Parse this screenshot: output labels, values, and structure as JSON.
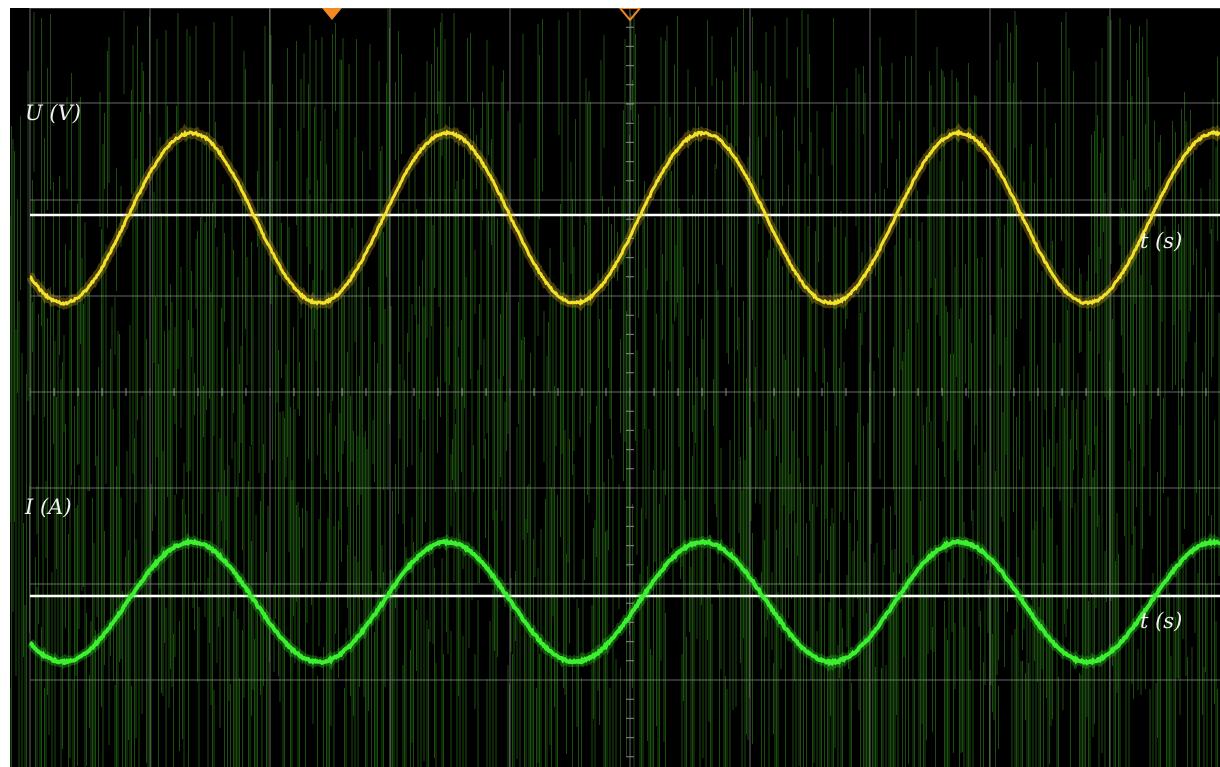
{
  "chart_data": [
    {
      "type": "line",
      "ylabel": "U (V)",
      "xlabel": "t (s)",
      "series": [
        {
          "values_description": "",
          "period_ms": 20,
          "phase_deg": 0,
          "amplitude": 1
        }
      ],
      "color": "#f2e22a",
      "period": 1,
      "amplitude": 1,
      "phase": 0,
      "cycles": 4.65
    },
    {
      "type": "line",
      "ylabel": "I (A)",
      "xlabel": "t (s)",
      "series": [
        {
          "period": 1,
          "phase": 0,
          "amplitude": 1
        }
      ],
      "color": "#3cf030",
      "period": 1,
      "amplitude": 1,
      "phase": 0,
      "cycles": 4.65
    }
  ],
  "colors": {
    "background": "#000000",
    "noise": "#1e5a10",
    "grid": "#8a8a8a",
    "axis": "#ffffff",
    "marker": "#f28a22"
  }
}
